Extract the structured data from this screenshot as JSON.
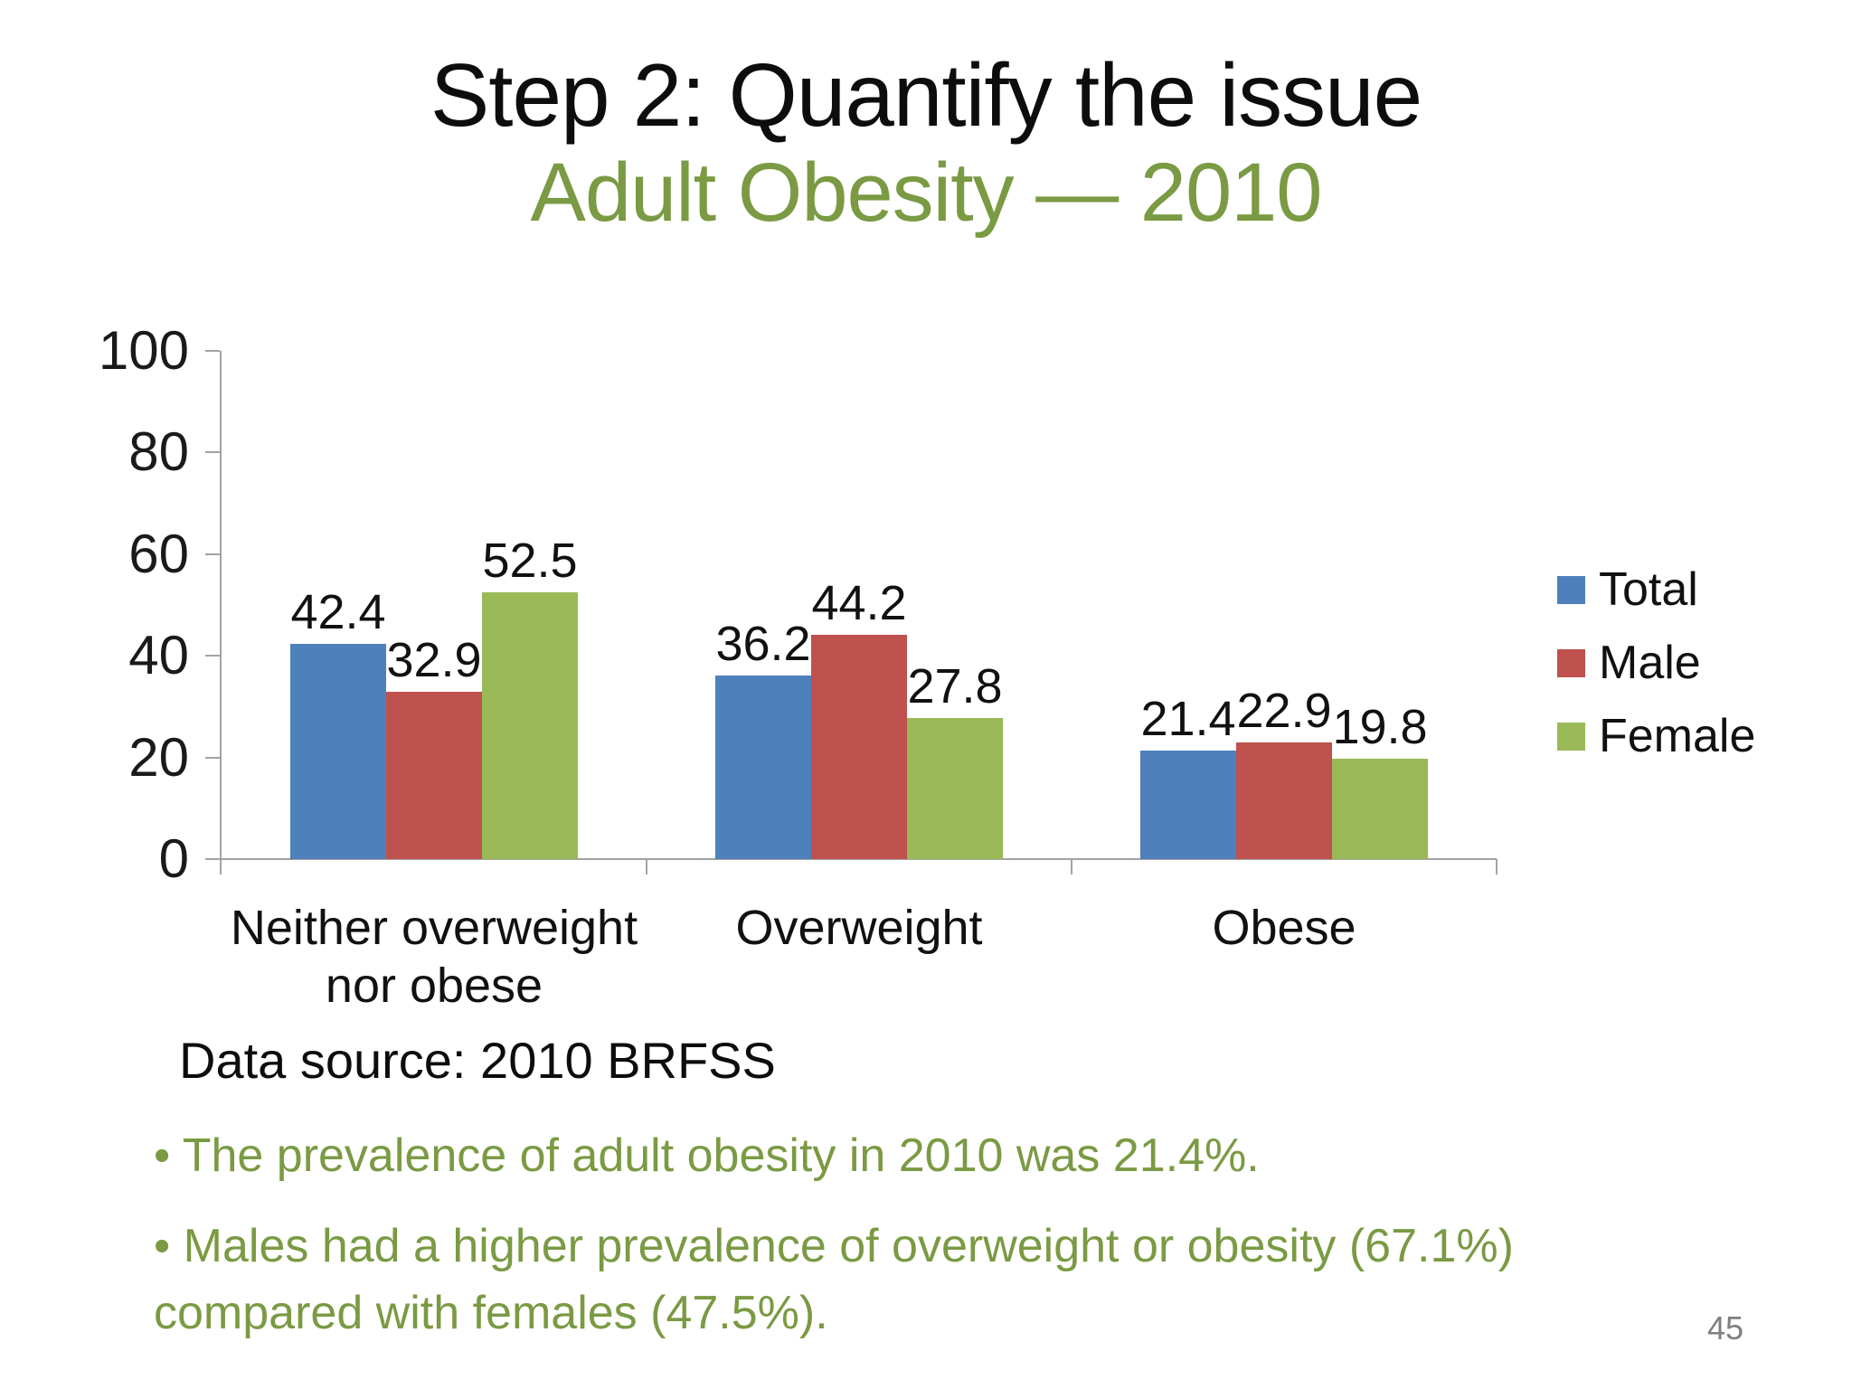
{
  "slide": {
    "title": "Step 2: Quantify the issue",
    "subtitle": "Adult Obesity — 2010",
    "data_source": "Data source: 2010 BRFSS",
    "bullet_char": "•",
    "bullets": [
      "The prevalence of adult obesity in 2010 was 21.4%.",
      "Males had a higher prevalence of overweight or obesity (67.1%) compared with females (47.5%)."
    ],
    "page_number": "45"
  },
  "colors": {
    "title_text": "#0d0d0d",
    "subtitle_text": "#7a9a43",
    "bullet_text": "#7a9a43",
    "axis": "#a3a3a3",
    "chart_text": "#111111",
    "page_number": "#7f7f7f",
    "total": "#4e81bc",
    "male": "#bf514e",
    "female": "#9aba58"
  },
  "chart_data": {
    "type": "bar",
    "categories": [
      "Neither overweight nor obese",
      "Overweight",
      "Obese"
    ],
    "categories_wrapped": [
      [
        "Neither overweight",
        "nor obese"
      ],
      [
        "Overweight"
      ],
      [
        "Obese"
      ]
    ],
    "series": [
      {
        "name": "Total",
        "color": "#4e81bc",
        "values": [
          42.4,
          36.2,
          21.4
        ]
      },
      {
        "name": "Male",
        "color": "#bf514e",
        "values": [
          32.9,
          44.2,
          22.9
        ]
      },
      {
        "name": "Female",
        "color": "#9aba58",
        "values": [
          52.5,
          27.8,
          19.8
        ]
      }
    ],
    "ylim": [
      0,
      100
    ],
    "yticks": [
      0,
      20,
      40,
      60,
      80,
      100
    ],
    "grid": false,
    "data_labels": true,
    "legend_position": "right",
    "title": "",
    "xlabel": "",
    "ylabel": ""
  }
}
